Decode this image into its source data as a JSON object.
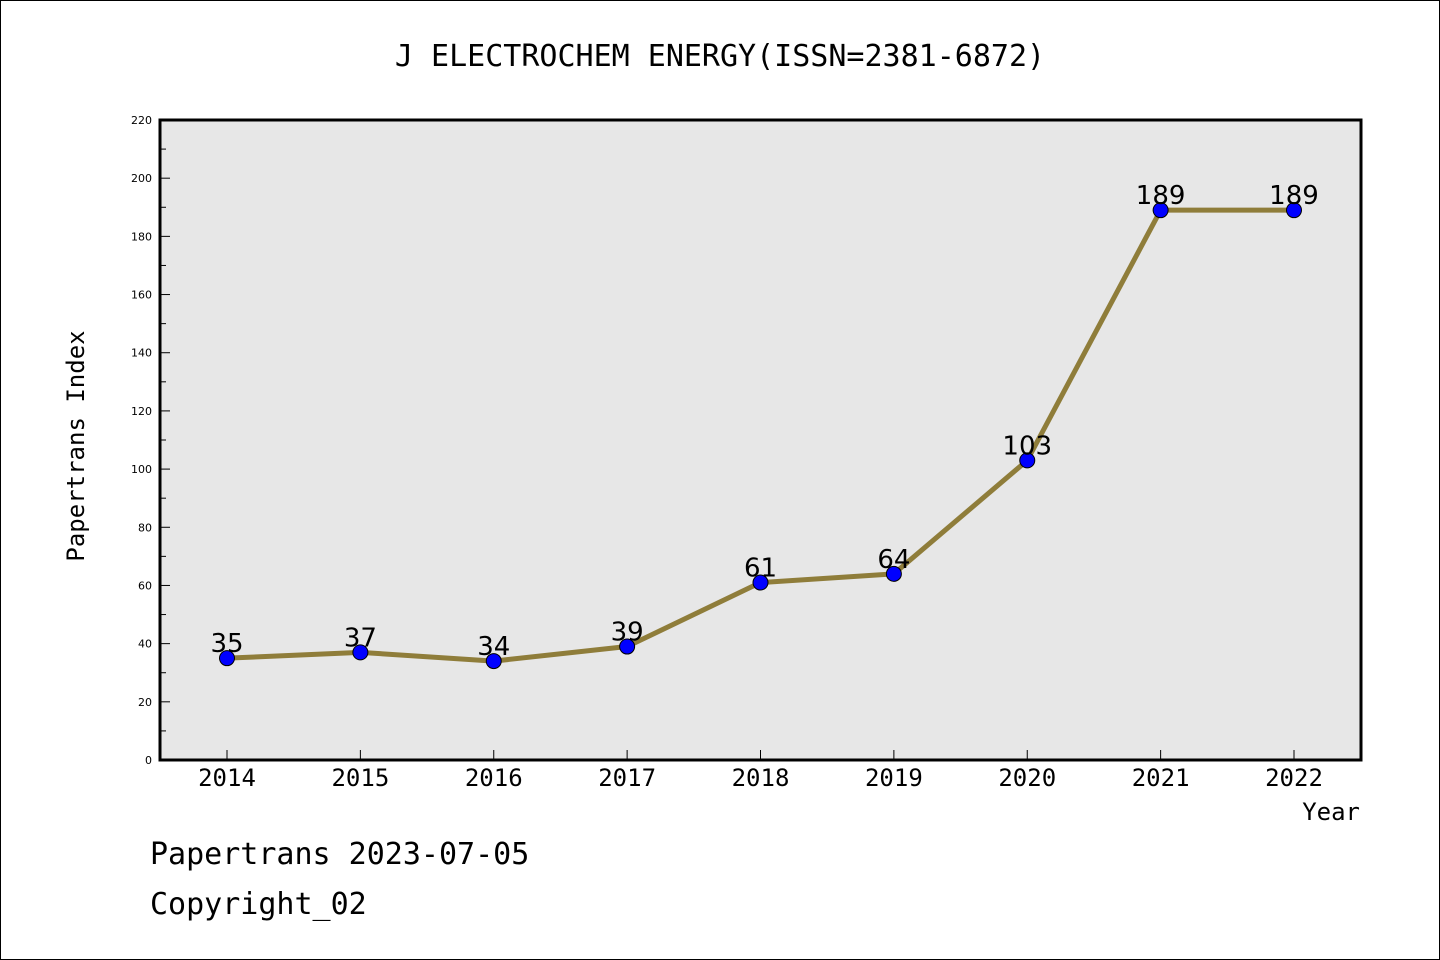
{
  "chart_data": {
    "type": "line",
    "title": "J ELECTROCHEM ENERGY(ISSN=2381-6872)",
    "xlabel": "Year",
    "ylabel": "Papertrans Index",
    "categories": [
      "2014",
      "2015",
      "2016",
      "2017",
      "2018",
      "2019",
      "2020",
      "2021",
      "2022"
    ],
    "values": [
      35,
      37,
      34,
      39,
      61,
      64,
      103,
      189,
      189
    ],
    "ylim": [
      0,
      220
    ],
    "yticks": [
      0,
      20,
      40,
      60,
      80,
      100,
      120,
      140,
      160,
      180,
      200,
      220
    ],
    "grid": false,
    "legend": "none",
    "line_color": "#8f7d3a",
    "marker_color": "#0000ff",
    "plot_background": "#e7e7e7"
  },
  "footer": {
    "line1": "Papertrans 2023-07-05",
    "line2": "Copyright_02"
  }
}
